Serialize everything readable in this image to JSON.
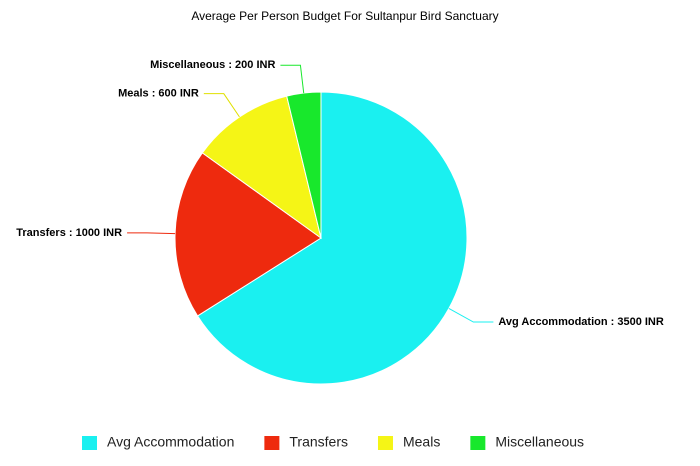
{
  "chart_data": {
    "type": "pie",
    "title": "Average Per Person Budget For Sultanpur Bird Sanctuary",
    "categories": [
      "Avg Accommodation",
      "Transfers",
      "Meals",
      "Miscellaneous"
    ],
    "values": [
      3500,
      1000,
      600,
      200
    ],
    "value_labels": [
      "Avg Accommodation : 3500 INR",
      "Transfers : 1000 INR",
      "Meals : 600 INR",
      "Miscellaneous : 200 INR"
    ],
    "colors": [
      "#1af0f0",
      "#ee2a0e",
      "#f5f516",
      "#18e82c"
    ],
    "legend": "bottom"
  }
}
